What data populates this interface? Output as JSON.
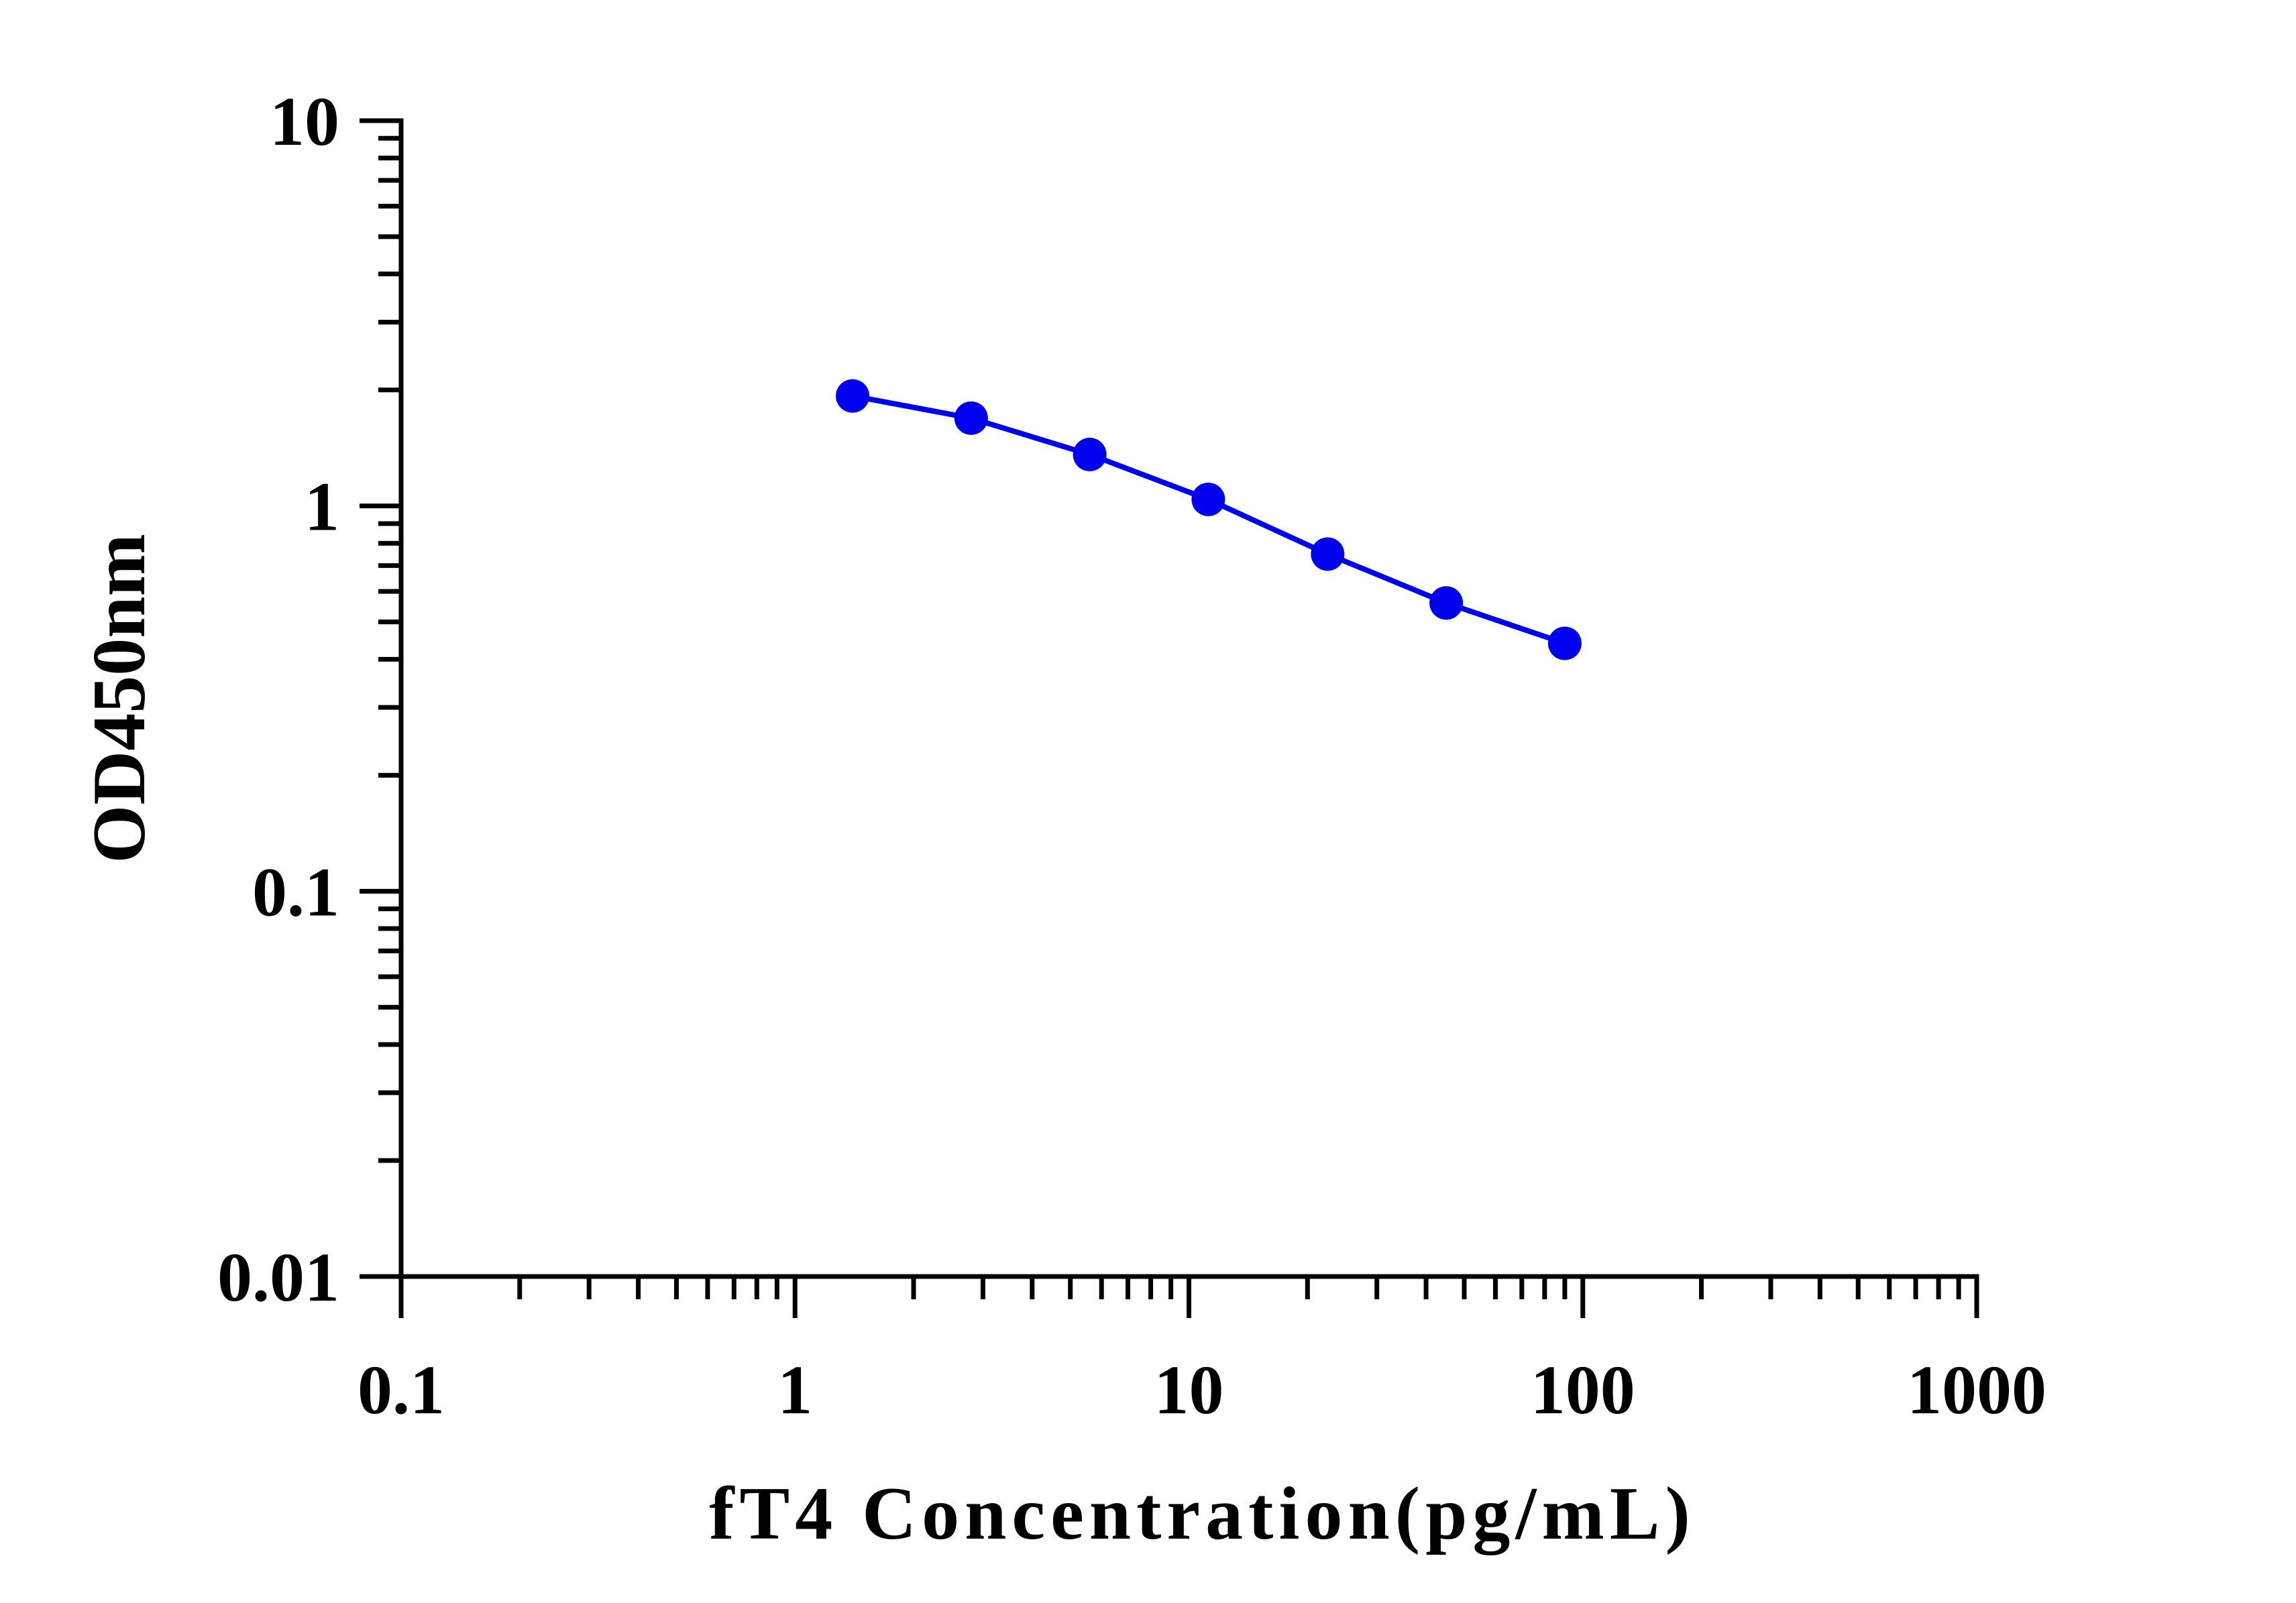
{
  "chart_data": {
    "type": "line",
    "title": "",
    "xlabel": "fT4 Concentration(pg/mL)",
    "ylabel": "OD450nm",
    "x_scale": "log",
    "y_scale": "log",
    "xlim": [
      0.1,
      1000
    ],
    "ylim": [
      0.01,
      10
    ],
    "x_tick_labels": [
      "0.1",
      "1",
      "10",
      "100",
      "1000"
    ],
    "y_tick_labels": [
      "0.01",
      "0.1",
      "1",
      "10"
    ],
    "grid": false,
    "legend": "none",
    "series": [
      {
        "color": "#0000ee",
        "marker": "circle",
        "points": [
          {
            "x": 1.4,
            "y": 1.93
          },
          {
            "x": 2.8,
            "y": 1.69
          },
          {
            "x": 5.6,
            "y": 1.36
          },
          {
            "x": 11.2,
            "y": 1.04
          },
          {
            "x": 22.5,
            "y": 0.75
          },
          {
            "x": 45,
            "y": 0.56
          },
          {
            "x": 90,
            "y": 0.44
          }
        ]
      }
    ]
  }
}
